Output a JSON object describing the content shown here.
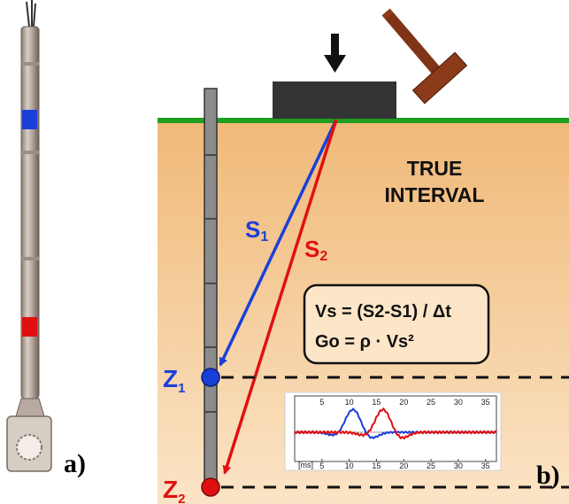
{
  "panel_a": {
    "label": "a)",
    "probe_sensor_colors": [
      "#1a3fd9",
      "#e01010"
    ]
  },
  "panel_b": {
    "label": "b)",
    "title_line1": "TRUE",
    "title_line2": "INTERVAL",
    "ray_1": {
      "label": "S",
      "sub": "1",
      "color": "#1a3fd9"
    },
    "ray_2": {
      "label": "S",
      "sub": "2",
      "color": "#e01010"
    },
    "depth_1": {
      "label": "Z",
      "sub": "1",
      "color": "#1a3fd9"
    },
    "depth_2": {
      "label": "Z",
      "sub": "2",
      "color": "#e01010"
    },
    "formula_1": "Vs = (S2-S1) / Δt",
    "formula_2": "Go = ρ · Vs²",
    "colors": {
      "ground": "#f4c48e",
      "grass": "#1f9e1f",
      "pad": "#333333",
      "hammer": "#8b3a1a"
    }
  },
  "waveform": {
    "tick_values": [
      5,
      10,
      15,
      20,
      25,
      30,
      35
    ],
    "unit_label": "[ms]",
    "x_range": [
      0,
      37
    ]
  }
}
